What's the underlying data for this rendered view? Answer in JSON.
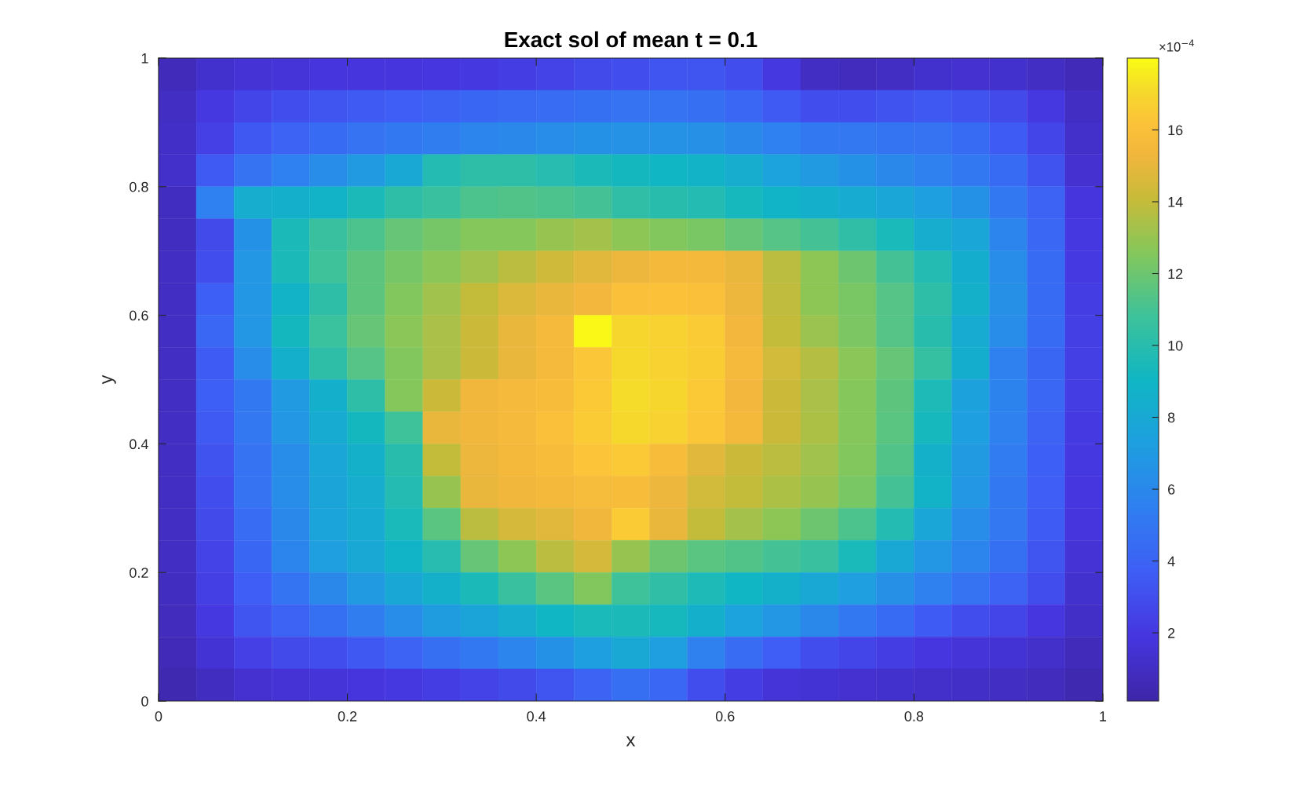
{
  "chart_data": {
    "type": "heatmap",
    "title": "Exact sol of mean t = 0.1",
    "xlabel": "x",
    "ylabel": "y",
    "clabel": "×10$^{−4}$",
    "xlim": [
      0,
      1
    ],
    "ylim": [
      0,
      1
    ],
    "xticks": [
      0,
      0.2,
      0.4,
      0.6,
      0.8,
      1
    ],
    "yticks": [
      0,
      0.2,
      0.4,
      0.6,
      0.8,
      1
    ],
    "clim": [
      0.1,
      18
    ],
    "cticks": [
      2,
      4,
      6,
      8,
      10,
      12,
      14,
      16
    ],
    "cells": [
      [
        0.7,
        1.3,
        1.6,
        1.7,
        1.8,
        1.8,
        1.8,
        1.9,
        2.0,
        2.2,
        2.5,
        2.8,
        3.0,
        3.3,
        3.3,
        3.0,
        2.0,
        1.0,
        0.8,
        1.0,
        1.3,
        1.4,
        1.3,
        1.0,
        0.6
      ],
      [
        1.0,
        2.0,
        2.6,
        3.0,
        3.3,
        3.5,
        3.7,
        3.9,
        4.1,
        4.3,
        4.5,
        4.7,
        4.8,
        4.8,
        4.6,
        4.2,
        3.5,
        3.0,
        3.0,
        3.2,
        3.4,
        3.2,
        2.8,
        2.0,
        1.0
      ],
      [
        1.1,
        2.4,
        3.4,
        4.0,
        4.4,
        4.8,
        5.1,
        5.4,
        5.8,
        6.0,
        6.2,
        6.5,
        6.6,
        6.6,
        6.4,
        6.0,
        5.5,
        5.2,
        5.0,
        4.9,
        4.8,
        4.4,
        3.6,
        2.6,
        1.2
      ],
      [
        1.2,
        3.5,
        4.8,
        5.5,
        6.2,
        7.0,
        8.0,
        9.8,
        10.2,
        10.2,
        9.9,
        9.5,
        9.2,
        9.0,
        8.8,
        8.3,
        7.5,
        7.0,
        6.5,
        6.0,
        5.6,
        5.2,
        4.4,
        3.2,
        1.4
      ],
      [
        0.9,
        5.5,
        8.3,
        8.5,
        8.8,
        9.5,
        10.2,
        10.6,
        11.2,
        11.3,
        11.2,
        11.0,
        10.3,
        10.0,
        9.8,
        9.3,
        8.9,
        8.5,
        8.2,
        7.8,
        7.3,
        6.5,
        5.2,
        4.0,
        1.8
      ],
      [
        0.9,
        2.8,
        6.5,
        9.5,
        10.6,
        11.2,
        11.8,
        12.2,
        12.6,
        12.6,
        13.0,
        13.3,
        12.8,
        12.5,
        12.3,
        11.8,
        11.4,
        11.0,
        10.3,
        9.4,
        8.3,
        7.8,
        5.8,
        4.2,
        2.0
      ],
      [
        1.0,
        3.0,
        6.8,
        9.5,
        10.8,
        11.6,
        12.2,
        12.7,
        13.2,
        13.8,
        14.3,
        14.8,
        15.2,
        15.5,
        15.5,
        15.0,
        13.8,
        12.8,
        12.0,
        11.0,
        9.8,
        8.4,
        6.2,
        4.4,
        2.1
      ],
      [
        1.0,
        3.8,
        6.8,
        8.8,
        10.2,
        11.6,
        12.5,
        13.2,
        14.0,
        14.6,
        15.0,
        15.4,
        16.0,
        16.1,
        16.0,
        15.2,
        13.9,
        12.8,
        12.3,
        11.4,
        10.2,
        8.6,
        6.4,
        4.4,
        2.2
      ],
      [
        1.0,
        4.2,
        6.8,
        9.2,
        10.7,
        11.8,
        12.7,
        13.4,
        14.2,
        15.0,
        15.6,
        17.9,
        16.9,
        16.8,
        16.5,
        15.4,
        14.0,
        13.1,
        12.4,
        11.4,
        10.0,
        8.2,
        6.2,
        4.4,
        2.3
      ],
      [
        1.0,
        3.6,
        6.2,
        8.5,
        10.2,
        11.4,
        12.5,
        13.4,
        14.2,
        15.0,
        15.6,
        16.3,
        17.0,
        16.8,
        16.6,
        15.6,
        14.4,
        13.6,
        12.7,
        11.8,
        10.5,
        8.4,
        5.6,
        4.1,
        2.3
      ],
      [
        1.0,
        3.8,
        5.2,
        7.0,
        8.5,
        10.2,
        12.6,
        14.2,
        15.3,
        15.6,
        15.8,
        16.4,
        17.1,
        16.9,
        16.4,
        15.4,
        14.2,
        13.4,
        12.6,
        11.6,
        9.6,
        7.4,
        5.7,
        4.2,
        2.2
      ],
      [
        1.0,
        3.5,
        5.0,
        6.8,
        8.2,
        9.2,
        10.8,
        15.0,
        15.3,
        15.6,
        16.0,
        16.5,
        17.0,
        16.8,
        16.3,
        15.5,
        14.2,
        13.5,
        12.6,
        11.5,
        9.3,
        7.3,
        5.6,
        4.0,
        2.1
      ],
      [
        1.0,
        3.2,
        4.8,
        6.3,
        7.8,
        8.6,
        10.0,
        14.0,
        15.2,
        15.5,
        15.8,
        16.2,
        16.4,
        15.8,
        14.8,
        14.2,
        13.8,
        13.2,
        12.5,
        11.3,
        8.6,
        7.0,
        5.3,
        3.8,
        2.0
      ],
      [
        1.0,
        3.0,
        4.8,
        6.2,
        7.7,
        8.3,
        9.8,
        13.0,
        15.0,
        15.3,
        15.5,
        15.7,
        15.8,
        15.2,
        14.4,
        14.0,
        13.5,
        13.0,
        12.3,
        11.0,
        8.8,
        6.8,
        5.1,
        3.7,
        1.9
      ],
      [
        1.0,
        2.8,
        4.5,
        6.0,
        7.6,
        8.2,
        9.4,
        11.5,
        13.8,
        14.5,
        14.8,
        15.3,
        16.5,
        15.0,
        14.0,
        13.3,
        12.8,
        12.0,
        11.2,
        9.8,
        7.8,
        6.2,
        5.0,
        3.6,
        1.8
      ],
      [
        1.0,
        2.5,
        4.1,
        5.8,
        7.2,
        8.0,
        8.9,
        9.9,
        11.8,
        12.8,
        13.8,
        14.5,
        13.0,
        12.0,
        11.5,
        11.3,
        11.0,
        10.6,
        9.4,
        8.0,
        6.8,
        5.8,
        4.7,
        3.3,
        1.6
      ],
      [
        0.9,
        2.3,
        3.7,
        4.9,
        6.0,
        7.0,
        7.9,
        8.6,
        9.5,
        10.6,
        11.5,
        12.5,
        10.8,
        10.3,
        9.6,
        9.0,
        8.6,
        8.0,
        7.2,
        6.4,
        5.6,
        4.8,
        4.0,
        2.9,
        1.3
      ],
      [
        0.8,
        2.0,
        3.3,
        4.0,
        4.7,
        5.4,
        6.3,
        7.1,
        7.7,
        8.3,
        9.0,
        9.4,
        9.5,
        9.3,
        8.5,
        7.5,
        6.8,
        6.0,
        5.2,
        4.4,
        3.6,
        3.0,
        2.6,
        1.9,
        1.1
      ],
      [
        0.6,
        1.5,
        2.4,
        2.8,
        3.0,
        3.4,
        4.0,
        4.6,
        5.2,
        5.8,
        6.5,
        7.3,
        8.0,
        7.2,
        5.6,
        4.5,
        3.7,
        3.0,
        2.6,
        2.2,
        1.9,
        1.7,
        1.5,
        1.2,
        0.7
      ],
      [
        0.4,
        0.9,
        1.4,
        1.6,
        1.7,
        1.8,
        2.0,
        2.2,
        2.5,
        2.8,
        3.3,
        4.0,
        4.6,
        4.2,
        3.0,
        2.2,
        1.7,
        1.5,
        1.4,
        1.3,
        1.2,
        1.1,
        1.0,
        0.8,
        0.4
      ]
    ]
  }
}
